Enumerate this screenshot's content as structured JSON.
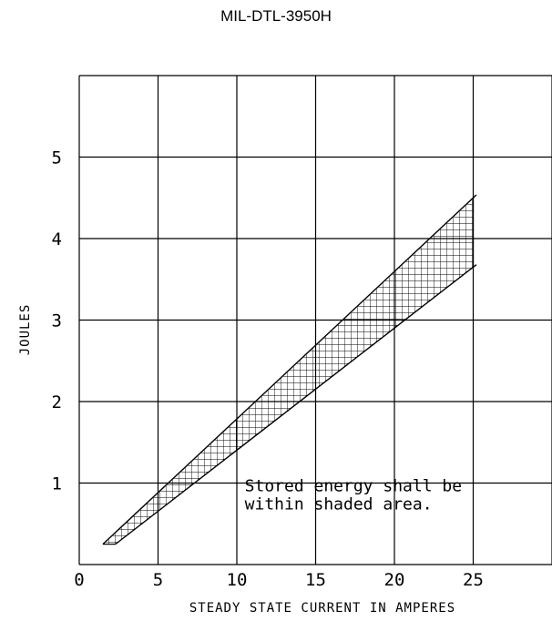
{
  "header": {
    "document_id": "MIL-DTL-3950H"
  },
  "chart_data": {
    "type": "area",
    "title": "",
    "xlabel": "STEADY STATE CURRENT IN AMPERES",
    "ylabel": "JOULES",
    "xlim": [
      0,
      30
    ],
    "ylim": [
      0,
      6
    ],
    "x_ticks": [
      "0",
      "5",
      "10",
      "15",
      "20",
      "25"
    ],
    "y_ticks": [
      "1",
      "2",
      "3",
      "4",
      "5"
    ],
    "grid": true,
    "shading": "crosshatch",
    "band": {
      "upper": [
        {
          "x": 1.5,
          "y": 0.25
        },
        {
          "x": 25,
          "y": 4.5
        }
      ],
      "lower": [
        {
          "x": 2.3,
          "y": 0.25
        },
        {
          "x": 25,
          "y": 3.65
        }
      ]
    },
    "annotation": {
      "lines": [
        "Stored energy shall be",
        "within shaded area."
      ],
      "at": {
        "x": 10.5,
        "y": 0.9
      }
    }
  }
}
